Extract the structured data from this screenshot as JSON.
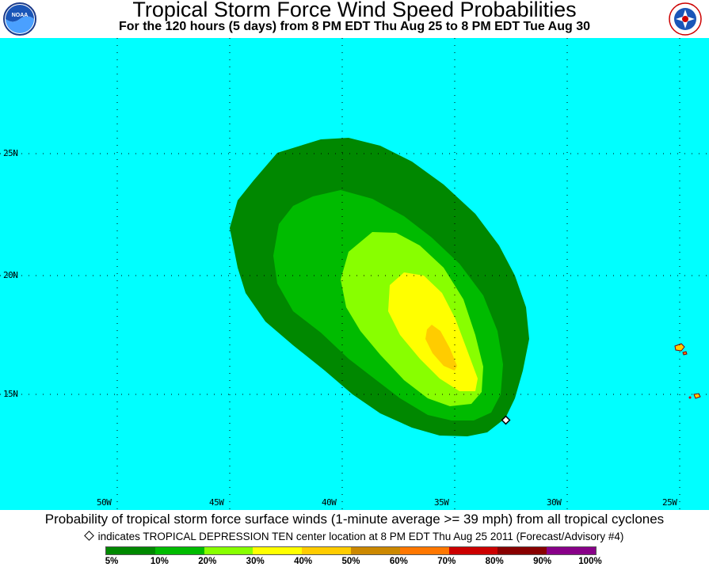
{
  "header": {
    "title": "Tropical Storm Force Wind Speed Probabilities",
    "subtitle": "For the 120 hours (5 days) from 8 PM EDT Thu Aug 25 to 8 PM EDT Tue Aug 30",
    "left_logo": {
      "text": "NOAA",
      "icon": "noaa-logo-icon"
    },
    "right_logo": {
      "text": "NATIONAL WEATHER SERVICE",
      "icon": "nws-logo-icon"
    }
  },
  "map": {
    "background_color": "#00ffff",
    "lat_labels": [
      "25N",
      "20N",
      "15N"
    ],
    "lon_labels": [
      "50W",
      "45W",
      "40W",
      "35W",
      "30W",
      "25W"
    ],
    "storm_center": {
      "name": "TROPICAL DEPRESSION TEN",
      "lat": 13.9,
      "lon": 32.5
    }
  },
  "footer": {
    "description": "Probability of tropical storm force surface winds (1-minute average >= 39 mph) from all tropical cyclones",
    "indicator": "indicates TROPICAL DEPRESSION TEN center location at 8 PM EDT Thu Aug 25 2011 (Forecast/Advisory #4)"
  },
  "legend": {
    "colors": [
      "#008800",
      "#00bb00",
      "#88ff00",
      "#ffff00",
      "#ffcc00",
      "#cc8800",
      "#ff7700",
      "#cc0000",
      "#880000",
      "#880088"
    ],
    "labels": [
      "5%",
      "10%",
      "20%",
      "30%",
      "40%",
      "50%",
      "60%",
      "70%",
      "80%",
      "90%",
      "100%"
    ]
  }
}
